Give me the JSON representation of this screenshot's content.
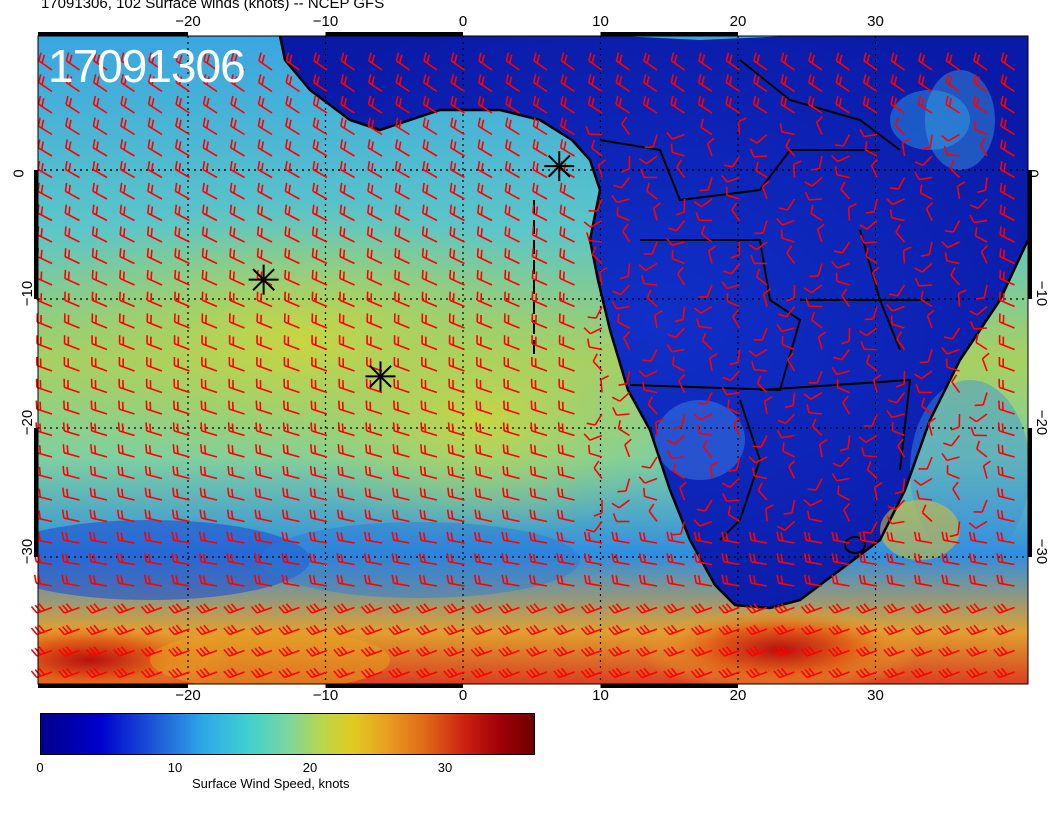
{
  "title": "17091306, 102 Surface winds (knots) -- NCEP GFS",
  "stamp": "17091306",
  "x_ticks": [
    "−20",
    "−10",
    "0",
    "10",
    "20",
    "30"
  ],
  "y_ticks": [
    "0",
    "−10",
    "−20",
    "−30"
  ],
  "colorbar": {
    "title": "Surface Wind Speed, knots",
    "labels": [
      "0",
      "10",
      "20",
      "30"
    ],
    "colors": [
      "#00008b",
      "#0000cd",
      "#2fa8e8",
      "#3fd0d0",
      "#b9d64a",
      "#e0cc20",
      "#e06818",
      "#cc2010",
      "#6a0000"
    ]
  },
  "markers": [
    {
      "lon": -14.5,
      "lat": -8.5
    },
    {
      "lon": -6,
      "lat": -16
    },
    {
      "lon": 7,
      "lat": 0.3
    }
  ],
  "barb_color": "#ff0000",
  "coast_color": "#000000"
}
